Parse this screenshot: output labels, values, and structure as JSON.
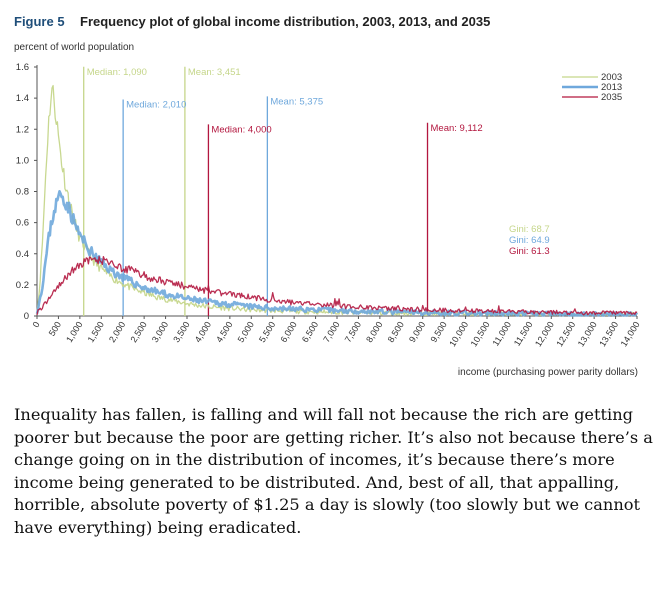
{
  "figure": {
    "number": "Figure 5",
    "title": "Frequency plot of global income distribution, 2003, 2013, and 2035"
  },
  "chart_data": {
    "type": "line",
    "title": "Frequency plot of global income distribution, 2003, 2013, and 2035",
    "ylabel": "percent of world population",
    "xlabel": "income (purchasing power parity dollars)",
    "ylim": [
      0,
      1.6
    ],
    "xlim": [
      0,
      14000
    ],
    "yticks": [
      "0",
      "0.2",
      "0.4",
      "0.6",
      "0.8",
      "1.0",
      "1.2",
      "1.4",
      "1.6"
    ],
    "ytick_values": [
      0,
      0.2,
      0.4,
      0.6,
      0.8,
      1.0,
      1.2,
      1.4,
      1.6
    ],
    "xticks": [
      "0",
      "500",
      "1,000",
      "1,500",
      "2,000",
      "2,500",
      "3,000",
      "3,500",
      "4,000",
      "4,500",
      "5,000",
      "5,500",
      "6,000",
      "6,500",
      "7,000",
      "7,500",
      "8,000",
      "8,500",
      "9,000",
      "9,500",
      "10,000",
      "10,500",
      "11,000",
      "11,500",
      "12,000",
      "12,500",
      "13,000",
      "13,500",
      "14,000"
    ],
    "series": [
      {
        "name": "2003",
        "color": "#c5d68a",
        "width": 1.3,
        "x": [
          0,
          50,
          100,
          150,
          200,
          250,
          300,
          350,
          400,
          500,
          600,
          700,
          800,
          900,
          1000,
          1200,
          1400,
          1600,
          1800,
          2000,
          2200,
          2500,
          2800,
          3000,
          3500,
          4000,
          4500,
          5000,
          5500,
          6000,
          7000,
          8000,
          9000,
          10000,
          11000,
          12000,
          13000,
          14000
        ],
        "y": [
          0.03,
          0.15,
          0.35,
          0.6,
          0.9,
          1.15,
          1.35,
          1.45,
          1.4,
          1.15,
          0.95,
          0.8,
          0.68,
          0.58,
          0.5,
          0.4,
          0.33,
          0.28,
          0.24,
          0.21,
          0.18,
          0.15,
          0.12,
          0.11,
          0.08,
          0.06,
          0.05,
          0.04,
          0.035,
          0.03,
          0.025,
          0.02,
          0.018,
          0.015,
          0.013,
          0.012,
          0.01,
          0.01
        ]
      },
      {
        "name": "2013",
        "color": "#6fa8dc",
        "width": 2.6,
        "x": [
          0,
          100,
          200,
          300,
          400,
          500,
          550,
          600,
          700,
          800,
          900,
          1000,
          1200,
          1400,
          1600,
          1800,
          2000,
          2200,
          2500,
          3000,
          3500,
          4000,
          4500,
          5000,
          5500,
          6000,
          7000,
          8000,
          9000,
          10000,
          11000,
          12000,
          13000,
          14000
        ],
        "y": [
          0.03,
          0.15,
          0.35,
          0.55,
          0.68,
          0.76,
          0.78,
          0.77,
          0.72,
          0.65,
          0.58,
          0.52,
          0.43,
          0.37,
          0.32,
          0.28,
          0.25,
          0.22,
          0.18,
          0.14,
          0.11,
          0.09,
          0.075,
          0.06,
          0.05,
          0.045,
          0.035,
          0.028,
          0.022,
          0.018,
          0.015,
          0.013,
          0.011,
          0.01
        ]
      },
      {
        "name": "2035",
        "color": "#b3173f",
        "width": 1.3,
        "x": [
          0,
          200,
          400,
          600,
          800,
          1000,
          1200,
          1400,
          1600,
          1800,
          2000,
          2300,
          2600,
          3000,
          3500,
          4000,
          4500,
          5000,
          5500,
          6000,
          7000,
          8000,
          9000,
          10000,
          11000,
          12000,
          13000,
          14000
        ],
        "y": [
          0.02,
          0.08,
          0.16,
          0.23,
          0.29,
          0.33,
          0.35,
          0.36,
          0.35,
          0.33,
          0.31,
          0.28,
          0.25,
          0.22,
          0.19,
          0.16,
          0.14,
          0.12,
          0.1,
          0.085,
          0.065,
          0.05,
          0.04,
          0.033,
          0.028,
          0.024,
          0.02,
          0.018
        ]
      }
    ],
    "markers": [
      {
        "label": "Median: 1,090",
        "x": 1090,
        "color": "#c5d68a",
        "text_y": 1.55
      },
      {
        "label": "Mean: 3,451",
        "x": 3451,
        "color": "#c5d68a",
        "text_y": 1.55
      },
      {
        "label": "Median: 2,010",
        "x": 2010,
        "color": "#6fa8dc",
        "text_y": 1.34
      },
      {
        "label": "Mean: 5,375",
        "x": 5375,
        "color": "#6fa8dc",
        "text_y": 1.36
      },
      {
        "label": "Median: 4,000",
        "x": 4000,
        "color": "#b3173f",
        "text_y": 1.18
      },
      {
        "label": "Mean: 9,112",
        "x": 9112,
        "color": "#b3173f",
        "text_y": 1.19
      }
    ],
    "gini": [
      {
        "label": "Gini: 68.7",
        "color": "#c5d68a"
      },
      {
        "label": "Gini: 64.9",
        "color": "#6fa8dc"
      },
      {
        "label": "Gini: 61.3",
        "color": "#b3173f"
      }
    ],
    "legend_position": "top-right"
  },
  "body_text": "Inequality has fallen, is falling and will fall not because the rich are getting poorer but because the poor are getting richer. It’s also not because there’s a change going on in the distribution of incomes, it’s because there’s more income being generated to be distributed. And, best of all, that appalling, horrible, absolute poverty of $1.25 a day is slowly (too slowly but we cannot have everything) being eradicated."
}
